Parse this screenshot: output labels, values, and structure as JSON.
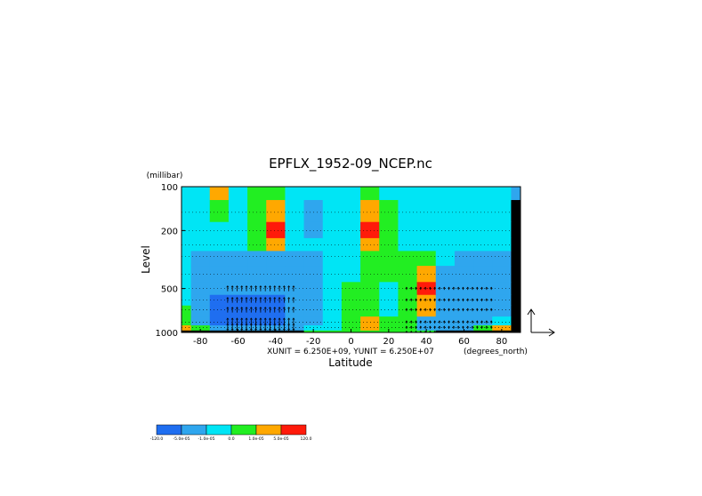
{
  "chart_data": {
    "type": "heatmap",
    "title": "EPFLX_1952-09_NCEP.nc",
    "xlabel": "Latitude",
    "xunits": "(degrees_north)",
    "ylabel": "Level",
    "yunits": "(millibar)",
    "x_ticks": [
      "-80",
      "-60",
      "-40",
      "-20",
      "0",
      "20",
      "40",
      "60",
      "80"
    ],
    "x_tick_values": [
      -80,
      -60,
      -40,
      -20,
      0,
      20,
      40,
      60,
      80
    ],
    "y_ticks": [
      "100",
      "200",
      "500",
      "1000"
    ],
    "y_tick_values": [
      100,
      200,
      500,
      1000
    ],
    "xlim": [
      -90,
      90
    ],
    "ylim": [
      1000,
      100
    ],
    "y_scale": "log",
    "unit_note": "XUNIT = 6.250E+09, YUNIT = 6.250E+07",
    "levels": [
      1000,
      925,
      850,
      700,
      600,
      500,
      400,
      300,
      250,
      200,
      150,
      100
    ],
    "lats": [
      -90,
      -80,
      -70,
      -60,
      -50,
      -40,
      -30,
      -20,
      -10,
      0,
      10,
      20,
      30,
      40,
      50,
      60,
      70,
      80,
      90
    ],
    "values": [
      [
        6,
        6,
        6,
        6,
        6,
        6,
        6,
        3,
        3,
        3,
        3,
        3,
        3,
        3,
        6,
        6,
        6,
        6,
        6
      ],
      [
        4,
        3,
        1,
        1,
        1,
        1,
        1,
        2,
        2,
        3,
        4,
        3,
        3,
        1,
        1,
        1,
        3,
        4,
        6
      ],
      [
        3,
        1,
        0,
        0,
        0,
        0,
        1,
        1,
        2,
        3,
        4,
        3,
        3,
        1,
        1,
        1,
        1,
        2,
        6
      ],
      [
        3,
        1,
        0,
        0,
        0,
        0,
        1,
        1,
        2,
        3,
        3,
        2,
        3,
        4,
        1,
        1,
        1,
        1,
        6
      ],
      [
        2,
        1,
        0,
        0,
        0,
        0,
        1,
        1,
        2,
        3,
        3,
        2,
        3,
        4,
        1,
        1,
        1,
        1,
        6
      ],
      [
        2,
        1,
        1,
        1,
        1,
        1,
        1,
        1,
        2,
        3,
        3,
        2,
        3,
        5,
        1,
        1,
        1,
        1,
        6
      ],
      [
        2,
        1,
        1,
        1,
        1,
        1,
        1,
        1,
        2,
        2,
        3,
        3,
        3,
        4,
        1,
        1,
        1,
        1,
        6
      ],
      [
        2,
        1,
        1,
        1,
        1,
        1,
        1,
        1,
        2,
        2,
        3,
        3,
        3,
        3,
        2,
        1,
        1,
        1,
        6
      ],
      [
        2,
        2,
        2,
        2,
        3,
        4,
        2,
        2,
        2,
        2,
        4,
        3,
        2,
        2,
        2,
        2,
        2,
        2,
        6
      ],
      [
        2,
        2,
        2,
        2,
        3,
        5,
        2,
        1,
        2,
        2,
        5,
        3,
        2,
        2,
        2,
        2,
        2,
        2,
        6
      ],
      [
        2,
        2,
        3,
        2,
        3,
        4,
        2,
        1,
        2,
        2,
        4,
        3,
        2,
        2,
        2,
        2,
        2,
        2,
        6
      ],
      [
        2,
        2,
        4,
        2,
        3,
        3,
        2,
        2,
        2,
        2,
        3,
        2,
        2,
        2,
        2,
        2,
        2,
        2,
        1
      ]
    ],
    "colorbar": {
      "colors": [
        "#1f6ef0",
        "#2fa6ee",
        "#00e5f5",
        "#22ee22",
        "#ffa800",
        "#ff1a0a"
      ],
      "labels": [
        "-120.0",
        "-5.0e-05",
        "-1.0e-05",
        "0.0",
        "1.0e-05",
        "5.0e-05",
        "120.0"
      ]
    },
    "vector_key": "arrows",
    "grid": "dotted"
  }
}
